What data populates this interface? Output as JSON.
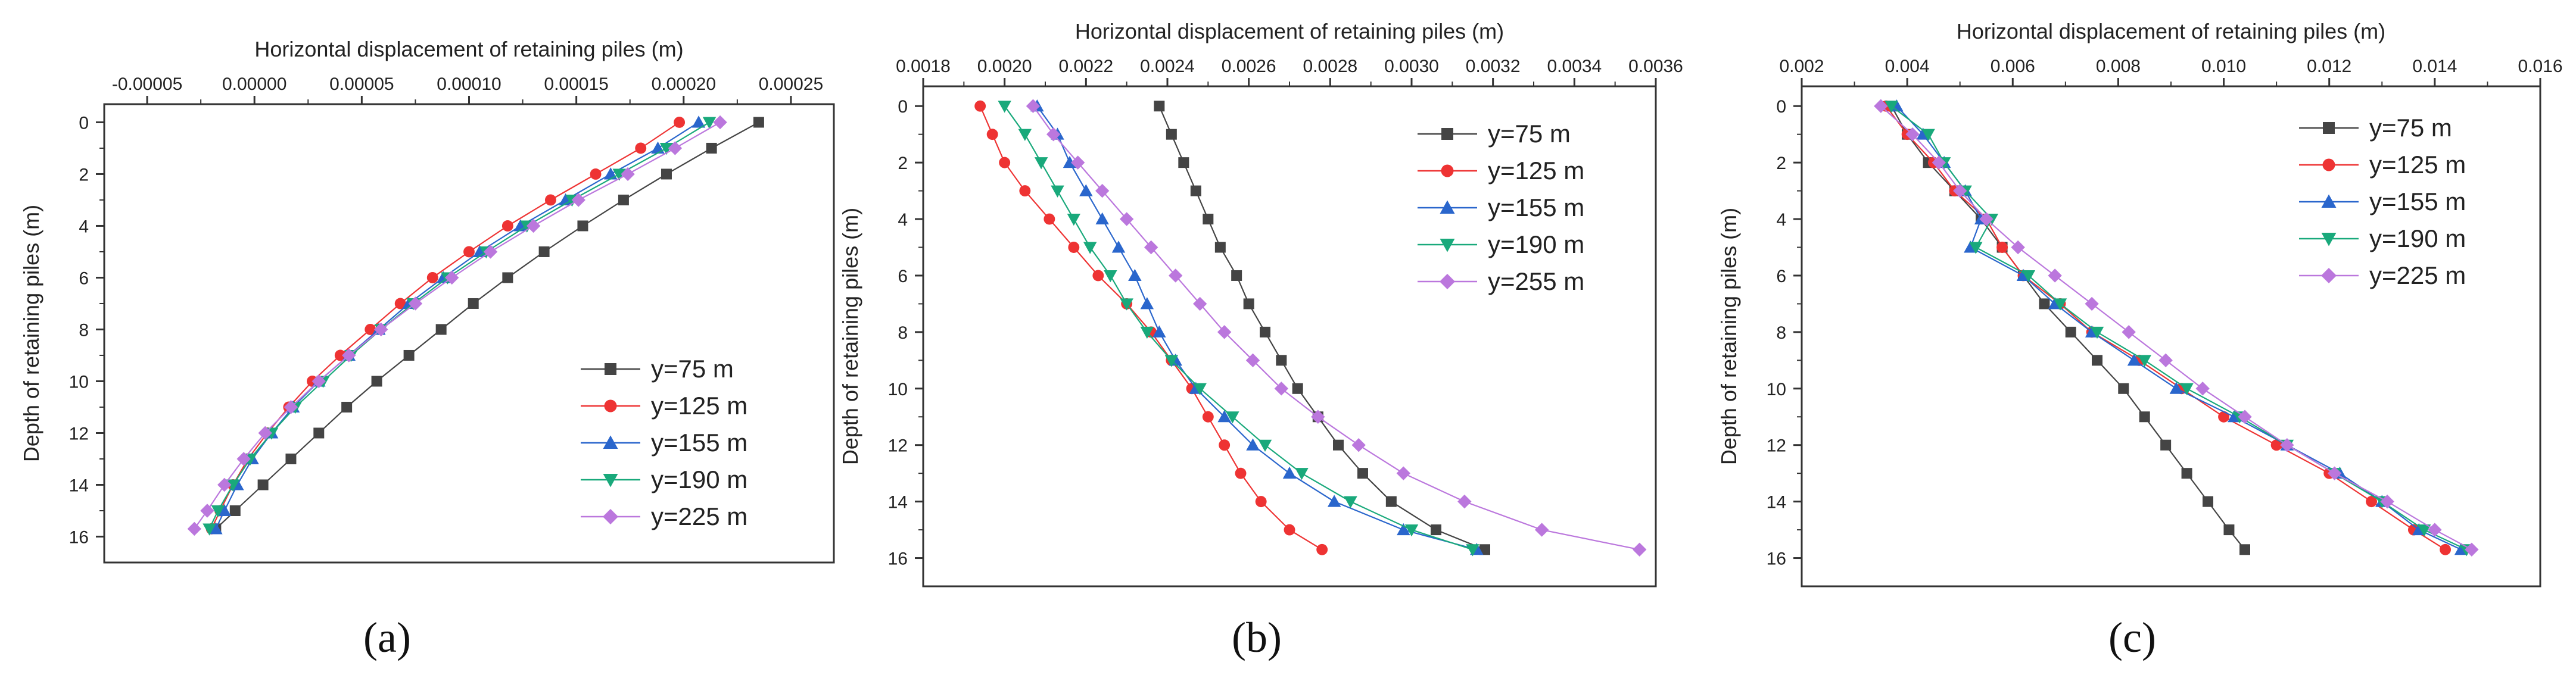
{
  "panels_caption": [
    "(a)",
    "(b)",
    "(c)"
  ],
  "chart_data": [
    {
      "type": "line",
      "panel_label": "(a)",
      "title": "",
      "xlabel": "Horizontal displacement of retaining piles (m)",
      "ylabel": "Depth of retaining piles (m)",
      "xlim": [
        -7e-05,
        0.00027
      ],
      "ylim": [
        -0.7,
        17
      ],
      "xticks": [
        -5e-05,
        0.0,
        5e-05,
        0.0001,
        0.00015,
        0.0002,
        0.00025
      ],
      "xtick_labels": [
        "-0.00005",
        "0.00000",
        "0.00005",
        "0.00010",
        "0.00015",
        "0.00020",
        "0.00025"
      ],
      "yticks": [
        0,
        2,
        4,
        6,
        8,
        10,
        12,
        14,
        16
      ],
      "ytick_labels": [
        "0",
        "2",
        "4",
        "6",
        "8",
        "10",
        "12",
        "14",
        "16"
      ],
      "legend_position": "bottom-right",
      "depths": [
        0,
        1,
        2,
        3,
        4,
        5,
        6,
        7,
        8,
        9,
        10,
        11,
        12,
        13,
        14,
        15,
        15.7
      ],
      "series": [
        {
          "name": "y=75 m",
          "color": "#444444",
          "marker": "square",
          "values": [
            0.000235,
            0.000213,
            0.000192,
            0.000172,
            0.000153,
            0.000135,
            0.000118,
            0.000102,
            8.7e-05,
            7.2e-05,
            5.7e-05,
            4.3e-05,
            3e-05,
            1.7e-05,
            4e-06,
            -9e-06,
            -1.8e-05
          ]
        },
        {
          "name": "y=125 m",
          "color": "#ee3333",
          "marker": "circle",
          "values": [
            0.000198,
            0.00018,
            0.000159,
            0.000138,
            0.000118,
            0.0001,
            8.3e-05,
            6.8e-05,
            5.4e-05,
            4e-05,
            2.7e-05,
            1.6e-05,
            6e-06,
            -3e-06,
            -1e-05,
            -1.6e-05,
            -2e-05
          ]
        },
        {
          "name": "y=155 m",
          "color": "#2a66cc",
          "marker": "triangle-up",
          "values": [
            0.000207,
            0.000188,
            0.000166,
            0.000145,
            0.000124,
            0.000105,
            8.8e-05,
            7.2e-05,
            5.8e-05,
            4.4e-05,
            3e-05,
            1.8e-05,
            8e-06,
            -1e-06,
            -8e-06,
            -1.4e-05,
            -1.8e-05
          ]
        },
        {
          "name": "y=190 m",
          "color": "#19a97b",
          "marker": "triangle-down",
          "values": [
            0.000212,
            0.000192,
            0.00017,
            0.000148,
            0.000127,
            0.000108,
            9e-05,
            7.4e-05,
            5.9e-05,
            4.5e-05,
            3.2e-05,
            1.9e-05,
            8e-06,
            -2e-06,
            -1e-05,
            -1.7e-05,
            -2.1e-05
          ]
        },
        {
          "name": "y=225 m",
          "color": "#bb77dd",
          "marker": "diamond",
          "values": [
            0.000217,
            0.000196,
            0.000174,
            0.000151,
            0.00013,
            0.00011,
            9.2e-05,
            7.5e-05,
            5.9e-05,
            4.4e-05,
            3e-05,
            1.7e-05,
            5e-06,
            -5e-06,
            -1.4e-05,
            -2.2e-05,
            -2.8e-05
          ]
        }
      ]
    },
    {
      "type": "line",
      "panel_label": "(b)",
      "title": "",
      "xlabel": "Horizontal displacement of retaining piles (m)",
      "ylabel": "Depth of retaining piles (m)",
      "xlim": [
        0.0018,
        0.0036
      ],
      "ylim": [
        -0.7,
        17
      ],
      "xticks": [
        0.0018,
        0.002,
        0.0022,
        0.0024,
        0.0026,
        0.0028,
        0.003,
        0.0032,
        0.0034,
        0.0036
      ],
      "xtick_labels": [
        "0.0018",
        "0.0020",
        "0.0022",
        "0.0024",
        "0.0026",
        "0.0028",
        "0.0030",
        "0.0032",
        "0.0034",
        "0.0036"
      ],
      "yticks": [
        0,
        2,
        4,
        6,
        8,
        10,
        12,
        14,
        16
      ],
      "ytick_labels": [
        "0",
        "2",
        "4",
        "6",
        "8",
        "10",
        "12",
        "14",
        "16"
      ],
      "legend_position": "top-right",
      "depths": [
        0,
        1,
        2,
        3,
        4,
        5,
        6,
        7,
        8,
        9,
        10,
        11,
        12,
        13,
        14,
        15,
        15.7
      ],
      "series": [
        {
          "name": "y=75 m",
          "color": "#444444",
          "marker": "square",
          "values": [
            0.00238,
            0.00241,
            0.00244,
            0.00247,
            0.0025,
            0.00253,
            0.00257,
            0.0026,
            0.00264,
            0.00268,
            0.00272,
            0.00277,
            0.00282,
            0.00288,
            0.00295,
            0.00306,
            0.00318
          ]
        },
        {
          "name": "y=125 m",
          "color": "#ee3333",
          "marker": "circle",
          "values": [
            0.00194,
            0.00197,
            0.002,
            0.00205,
            0.00211,
            0.00217,
            0.00223,
            0.0023,
            0.00236,
            0.00241,
            0.00246,
            0.0025,
            0.00254,
            0.00258,
            0.00263,
            0.0027,
            0.00278
          ]
        },
        {
          "name": "y=155 m",
          "color": "#2a66cc",
          "marker": "triangle-up",
          "values": [
            0.00208,
            0.00213,
            0.00216,
            0.0022,
            0.00224,
            0.00228,
            0.00232,
            0.00235,
            0.00238,
            0.00242,
            0.00247,
            0.00254,
            0.00261,
            0.0027,
            0.00281,
            0.00298,
            0.00316
          ]
        },
        {
          "name": "y=190 m",
          "color": "#19a97b",
          "marker": "triangle-down",
          "values": [
            0.002,
            0.00205,
            0.00209,
            0.00213,
            0.00217,
            0.00221,
            0.00226,
            0.0023,
            0.00235,
            0.00241,
            0.00248,
            0.00256,
            0.00264,
            0.00273,
            0.00285,
            0.003,
            0.00315
          ]
        },
        {
          "name": "y=255 m",
          "color": "#bb77dd",
          "marker": "diamond",
          "values": [
            0.00207,
            0.00212,
            0.00218,
            0.00224,
            0.0023,
            0.00236,
            0.00242,
            0.00248,
            0.00254,
            0.00261,
            0.00268,
            0.00277,
            0.00287,
            0.00298,
            0.00313,
            0.00332,
            0.00356
          ]
        }
      ]
    },
    {
      "type": "line",
      "panel_label": "(c)",
      "title": "",
      "xlabel": "Horizontal displacement of retaining piles (m)",
      "ylabel": "Depth of retaining piles (m)",
      "xlim": [
        0.002,
        0.016
      ],
      "ylim": [
        -0.7,
        17
      ],
      "xticks": [
        0.002,
        0.004,
        0.006,
        0.008,
        0.01,
        0.012,
        0.014,
        0.016
      ],
      "xtick_labels": [
        "0.002",
        "0.004",
        "0.006",
        "0.008",
        "0.010",
        "0.012",
        "0.014",
        "0.016"
      ],
      "yticks": [
        0,
        2,
        4,
        6,
        8,
        10,
        12,
        14,
        16
      ],
      "ytick_labels": [
        "0",
        "2",
        "4",
        "6",
        "8",
        "10",
        "12",
        "14",
        "16"
      ],
      "legend_position": "top-right",
      "depths": [
        0,
        1,
        2,
        3,
        4,
        5,
        6,
        7,
        8,
        9,
        10,
        11,
        12,
        13,
        14,
        15,
        15.7
      ],
      "series": [
        {
          "name": "y=75 m",
          "color": "#444444",
          "marker": "square",
          "values": [
            0.0037,
            0.004,
            0.0044,
            0.0049,
            0.0054,
            0.0058,
            0.0062,
            0.0066,
            0.0071,
            0.0076,
            0.0081,
            0.0085,
            0.0089,
            0.0093,
            0.0097,
            0.0101,
            0.0104
          ]
        },
        {
          "name": "y=125 m",
          "color": "#ee3333",
          "marker": "circle",
          "values": [
            0.0036,
            0.004,
            0.0045,
            0.0049,
            0.0055,
            0.0058,
            0.0062,
            0.0069,
            0.0075,
            0.0084,
            0.0092,
            0.01,
            0.011,
            0.012,
            0.0128,
            0.0136,
            0.0142
          ]
        },
        {
          "name": "y=155 m",
          "color": "#2a66cc",
          "marker": "triangle-up",
          "values": [
            0.0038,
            0.0043,
            0.0047,
            0.0051,
            0.0054,
            0.0052,
            0.0062,
            0.0068,
            0.0075,
            0.0083,
            0.0091,
            0.0102,
            0.0112,
            0.0122,
            0.013,
            0.0137,
            0.0145
          ]
        },
        {
          "name": "y=190 m",
          "color": "#19a97b",
          "marker": "triangle-down",
          "values": [
            0.0037,
            0.0044,
            0.0047,
            0.0051,
            0.0056,
            0.0053,
            0.0063,
            0.0069,
            0.0076,
            0.0085,
            0.0093,
            0.0103,
            0.0112,
            0.0121,
            0.013,
            0.0138,
            0.0146
          ]
        },
        {
          "name": "y=225 m",
          "color": "#bb77dd",
          "marker": "diamond",
          "values": [
            0.0035,
            0.0041,
            0.0046,
            0.005,
            0.0055,
            0.0061,
            0.0068,
            0.0075,
            0.0082,
            0.0089,
            0.0096,
            0.0104,
            0.0112,
            0.0121,
            0.0131,
            0.014,
            0.0147
          ]
        }
      ]
    }
  ]
}
